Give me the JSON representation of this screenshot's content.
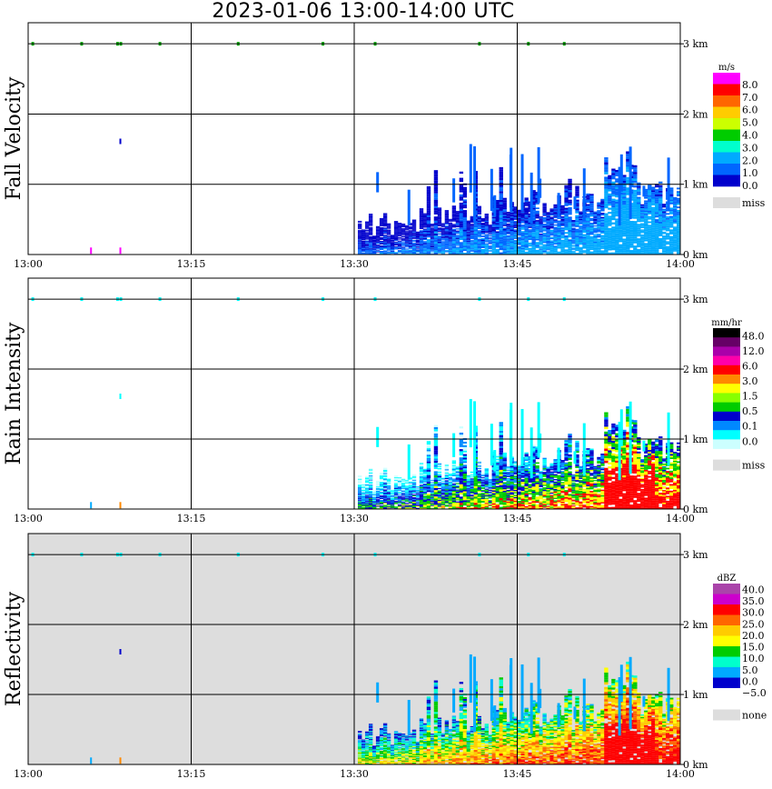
{
  "title": "2023-01-06  13:00-14:00 UTC",
  "x_ticks": [
    "13:00",
    "13:15",
    "13:30",
    "13:45",
    "14:00"
  ],
  "y_ticks": [
    "0 km",
    "1 km",
    "2 km",
    "3 km"
  ],
  "panels": [
    {
      "ylabel": "Fall Velocity",
      "unit": "m/s",
      "legend": [
        "8.0",
        "7.0",
        "6.0",
        "5.0",
        "4.0",
        "3.0",
        "2.0",
        "1.0",
        "0.0"
      ],
      "missing_label": "miss",
      "colors": [
        "#ff00ff",
        "#ff0000",
        "#ff6600",
        "#ffcc00",
        "#ccff00",
        "#00cc00",
        "#00ffcc",
        "#00aaff",
        "#0066ff",
        "#0000cc"
      ],
      "background": "#ffffff"
    },
    {
      "ylabel": "Rain Intensity",
      "unit": "mm/hr",
      "legend": [
        "48.0",
        "12.0",
        "6.0",
        "3.0",
        "1.5",
        "0.5",
        "0.1",
        "0.0"
      ],
      "missing_label": "miss",
      "colors": [
        "#000000",
        "#660066",
        "#aa00aa",
        "#ff00aa",
        "#ff0000",
        "#ff8800",
        "#ffff00",
        "#88ff00",
        "#00cc00",
        "#0000cc",
        "#0088ff",
        "#00ffff",
        "#ccffff"
      ],
      "background": "#ffffff"
    },
    {
      "ylabel": "Reflectivity",
      "unit": "dBZ",
      "legend": [
        "40.0",
        "35.0",
        "30.0",
        "25.0",
        "20.0",
        "15.0",
        "10.0",
        "5.0",
        "0.0",
        "−5.0"
      ],
      "missing_label": "none",
      "colors": [
        "#aa44aa",
        "#cc00cc",
        "#ff0000",
        "#ff6600",
        "#ffcc00",
        "#ffff00",
        "#00cc00",
        "#00ffcc",
        "#00aaff",
        "#0000cc",
        "#ffffff"
      ],
      "background": "#dddddd"
    }
  ],
  "chart_data": {
    "type": "heatmap",
    "x_range": [
      "13:00",
      "14:00"
    ],
    "ylim_km": [
      0,
      3.3
    ],
    "grid": true,
    "legend_placement": "right"
  }
}
